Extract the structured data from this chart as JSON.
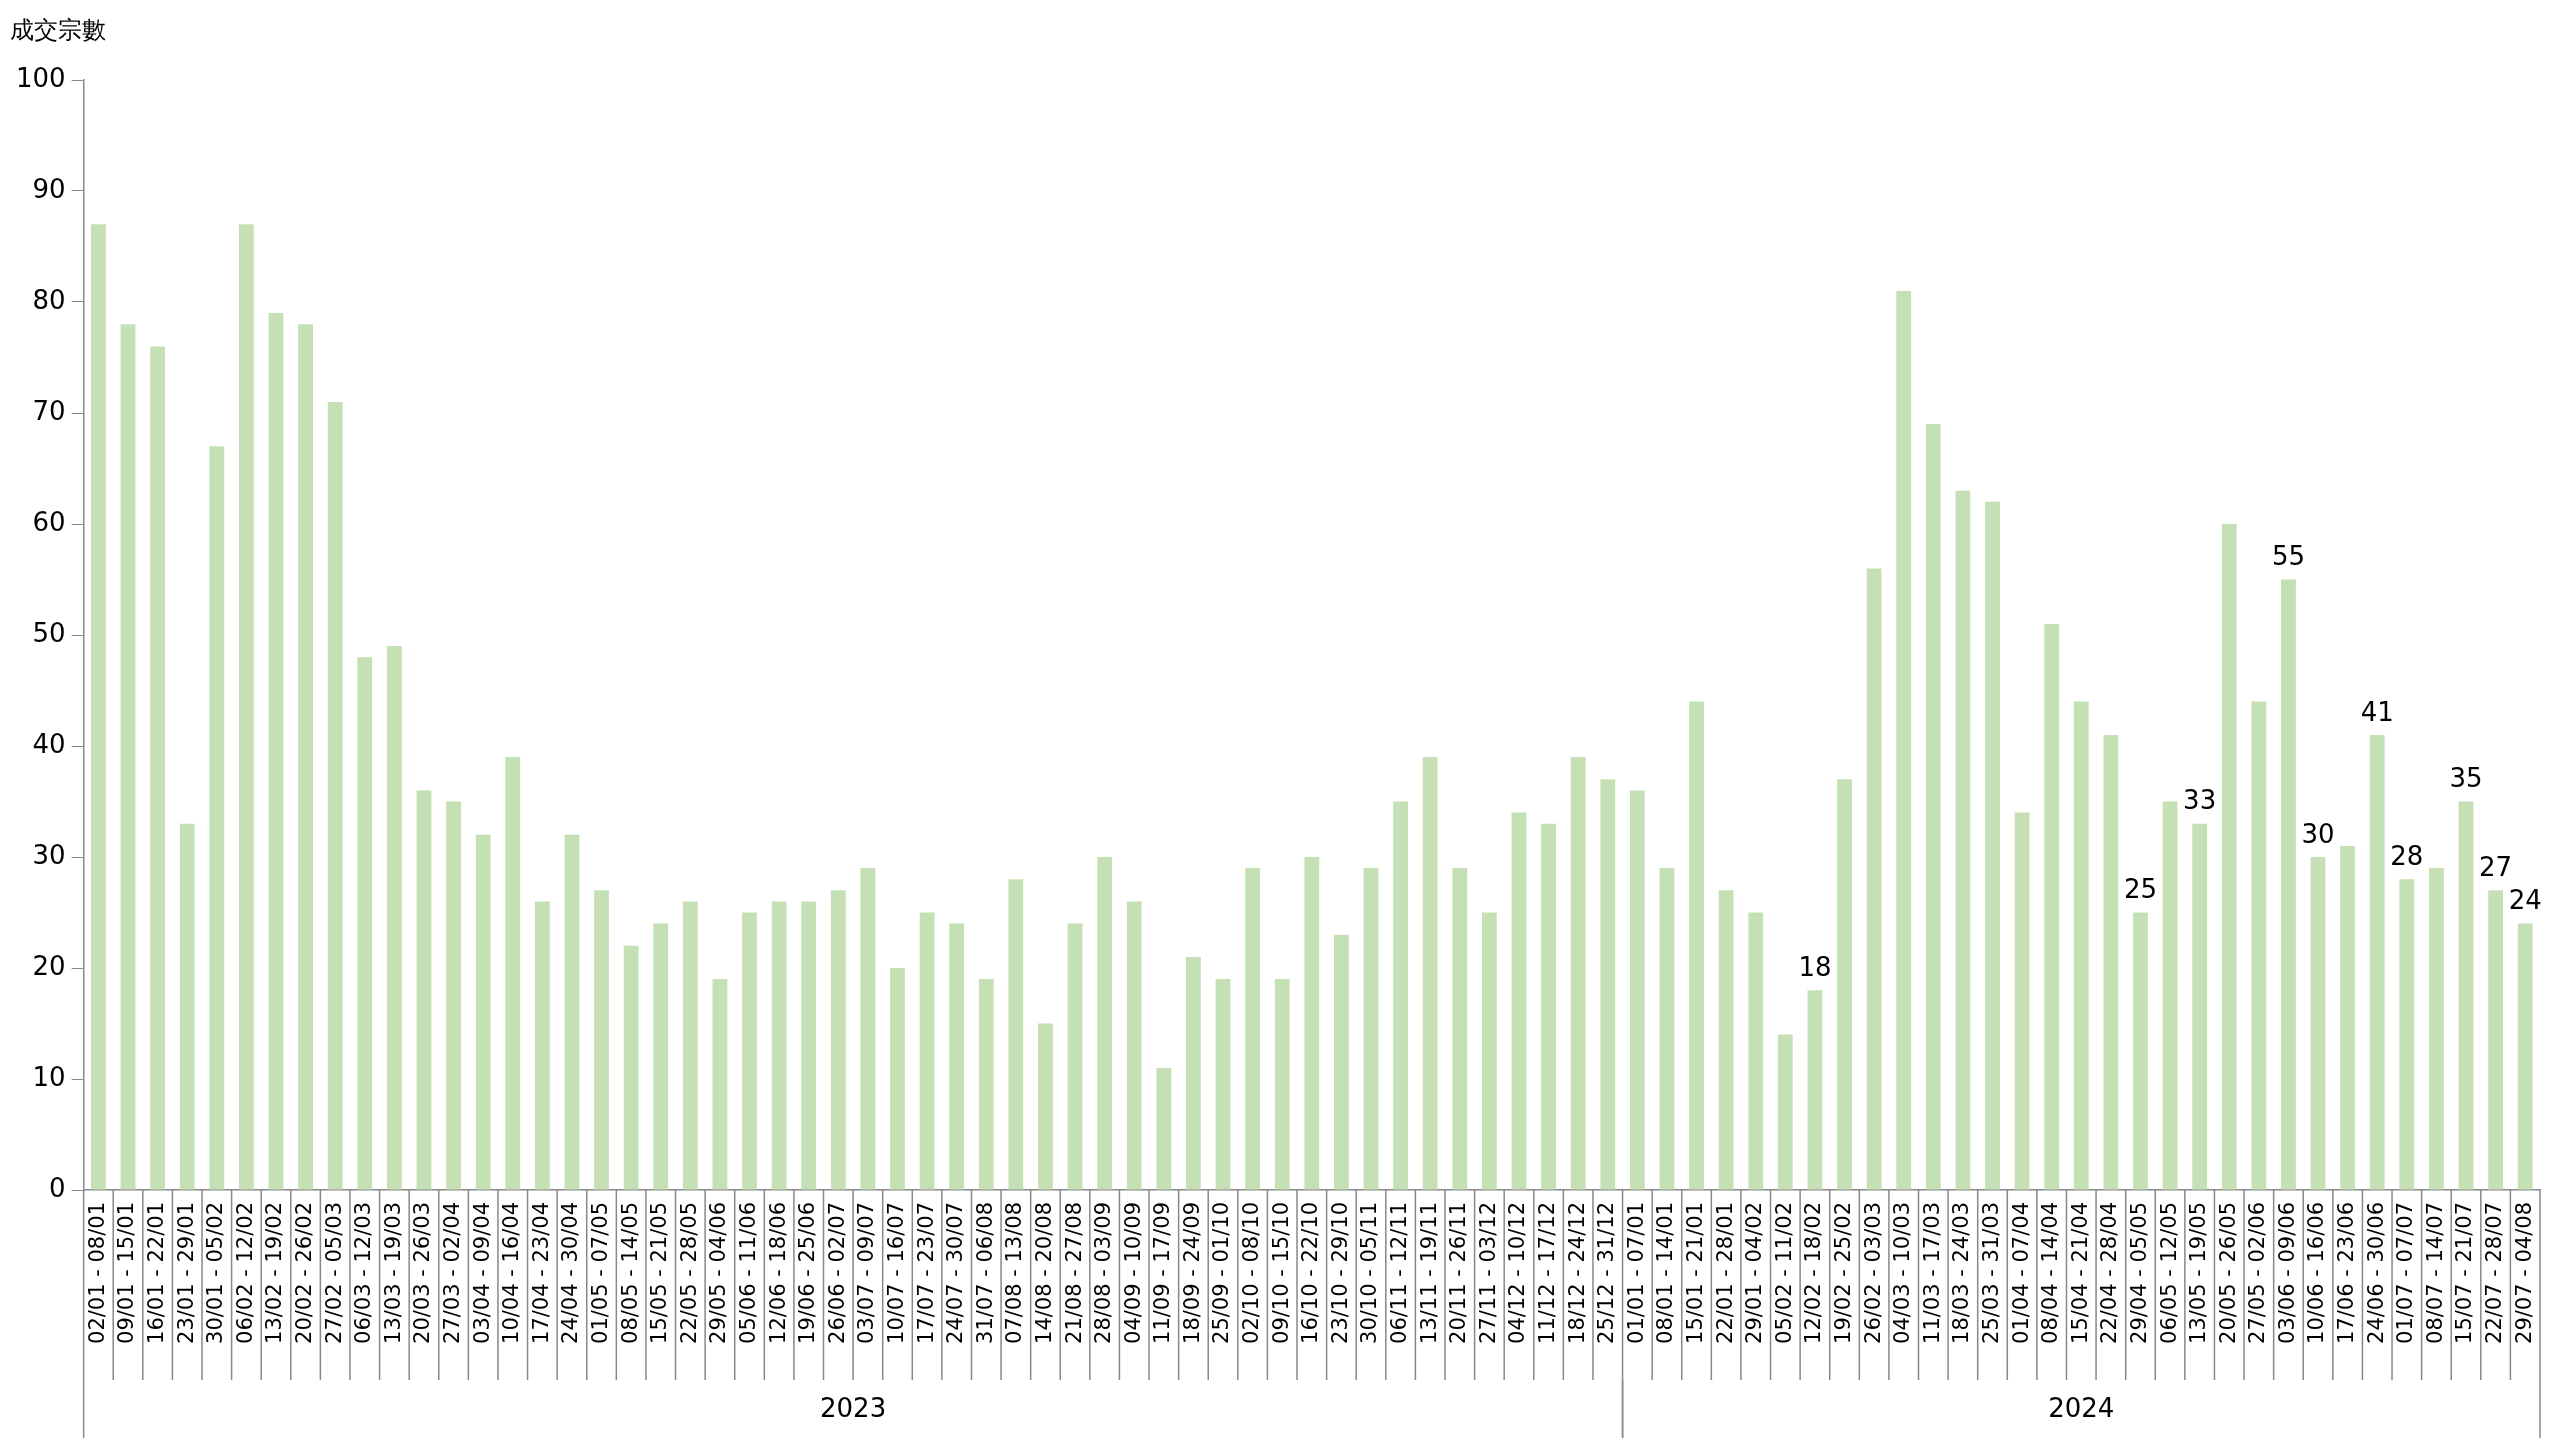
{
  "chart_data": {
    "type": "bar",
    "ylabel": "成交宗數",
    "color": "#c5e0b4",
    "categories": [
      "02/01 - 08/01",
      "09/01 - 15/01",
      "16/01 - 22/01",
      "23/01 - 29/01",
      "30/01 - 05/02",
      "06/02 - 12/02",
      "13/02 - 19/02",
      "20/02 - 26/02",
      "27/02 - 05/03",
      "06/03 - 12/03",
      "13/03 - 19/03",
      "20/03 - 26/03",
      "27/03 - 02/04",
      "03/04 - 09/04",
      "10/04 - 16/04",
      "17/04 - 23/04",
      "24/04 - 30/04",
      "01/05 - 07/05",
      "08/05 - 14/05",
      "15/05 - 21/05",
      "22/05 - 28/05",
      "29/05 - 04/06",
      "05/06 - 11/06",
      "12/06 - 18/06",
      "19/06 - 25/06",
      "26/06 - 02/07",
      "03/07 - 09/07",
      "10/07 - 16/07",
      "17/07 - 23/07",
      "24/07 - 30/07",
      "31/07 - 06/08",
      "07/08 - 13/08",
      "14/08 - 20/08",
      "21/08 - 27/08",
      "28/08 - 03/09",
      "04/09 - 10/09",
      "11/09 - 17/09",
      "18/09 - 24/09",
      "25/09 - 01/10",
      "02/10 - 08/10",
      "09/10 - 15/10",
      "16/10 - 22/10",
      "23/10 - 29/10",
      "30/10 - 05/11",
      "06/11 - 12/11",
      "13/11 - 19/11",
      "20/11 - 26/11",
      "27/11 - 03/12",
      "04/12 - 10/12",
      "11/12 - 17/12",
      "18/12 - 24/12",
      "25/12 - 31/12",
      "01/01 - 07/01",
      "08/01 - 14/01",
      "15/01 - 21/01",
      "22/01 - 28/01",
      "29/01 - 04/02",
      "05/02 - 11/02",
      "12/02 - 18/02",
      "19/02 - 25/02",
      "26/02 - 03/03",
      "04/03 - 10/03",
      "11/03 - 17/03",
      "18/03 - 24/03",
      "25/03 - 31/03",
      "01/04 - 07/04",
      "08/04 - 14/04",
      "15/04 - 21/04",
      "22/04 - 28/04",
      "29/04 - 05/05",
      "06/05 - 12/05",
      "13/05 - 19/05",
      "20/05 - 26/05",
      "27/05 - 02/06",
      "03/06 - 09/06",
      "10/06 - 16/06",
      "17/06 - 23/06",
      "24/06 - 30/06",
      "01/07 - 07/07",
      "08/07 - 14/07",
      "15/07 - 21/07",
      "22/07 - 28/07",
      "29/07 - 04/08"
    ],
    "values": [
      87,
      78,
      76,
      33,
      67,
      87,
      79,
      78,
      71,
      48,
      49,
      36,
      35,
      32,
      39,
      26,
      32,
      27,
      22,
      24,
      26,
      19,
      25,
      26,
      26,
      27,
      29,
      20,
      25,
      24,
      19,
      28,
      15,
      24,
      30,
      26,
      11,
      21,
      19,
      29,
      19,
      30,
      23,
      29,
      35,
      39,
      29,
      25,
      34,
      33,
      39,
      37,
      36,
      29,
      44,
      27,
      25,
      14,
      18,
      37,
      56,
      81,
      69,
      63,
      62,
      34,
      51,
      44,
      41,
      25,
      35,
      33,
      60,
      44,
      55,
      30,
      31,
      41,
      28,
      29,
      35,
      27,
      24
    ],
    "value_labels": [
      null,
      null,
      null,
      null,
      null,
      null,
      null,
      null,
      null,
      null,
      null,
      null,
      null,
      null,
      null,
      null,
      null,
      null,
      null,
      null,
      null,
      null,
      null,
      null,
      null,
      null,
      null,
      null,
      null,
      null,
      null,
      null,
      null,
      null,
      null,
      null,
      null,
      null,
      null,
      null,
      null,
      null,
      null,
      null,
      null,
      null,
      null,
      null,
      null,
      null,
      null,
      null,
      null,
      null,
      null,
      null,
      null,
      null,
      "18",
      null,
      null,
      null,
      null,
      null,
      null,
      null,
      null,
      null,
      null,
      "25",
      null,
      "33",
      null,
      null,
      "55",
      "30",
      null,
      "41",
      "28",
      null,
      "35",
      "27",
      "24"
    ],
    "ylim": [
      0,
      100
    ],
    "yticks": [
      0,
      10,
      20,
      30,
      40,
      50,
      60,
      70,
      80,
      90,
      100
    ],
    "annotations": [
      "2023",
      "2024"
    ]
  }
}
